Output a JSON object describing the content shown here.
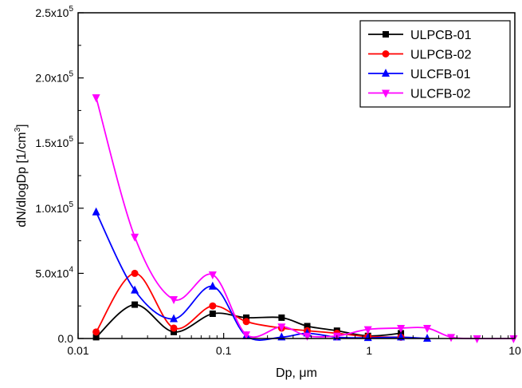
{
  "chart_data": {
    "type": "line",
    "title": "",
    "xlabel": "Dp, μm",
    "ylabel": {
      "main": "dN/dlogDp [1/cm",
      "sup": "3",
      "end": "]"
    },
    "x_scale": "log",
    "xlim": [
      0.01,
      10
    ],
    "ylim": [
      0,
      250000
    ],
    "x_ticks": [
      {
        "value": 0.01,
        "label": "0.01"
      },
      {
        "value": 0.1,
        "label": "0.1"
      },
      {
        "value": 1,
        "label": "1"
      },
      {
        "value": 10,
        "label": "10"
      }
    ],
    "y_ticks": [
      {
        "value": 0,
        "mant": "0.0",
        "exp": ""
      },
      {
        "value": 50000,
        "mant": "5.0x10",
        "exp": "4"
      },
      {
        "value": 100000,
        "mant": "1.0x10",
        "exp": "5"
      },
      {
        "value": 150000,
        "mant": "1.5x10",
        "exp": "5"
      },
      {
        "value": 200000,
        "mant": "2.0x10",
        "exp": "5"
      },
      {
        "value": 250000,
        "mant": "2.5x10",
        "exp": "5"
      }
    ],
    "grid": false,
    "legend_position": "top-right",
    "series": [
      {
        "name": "ULPCB-01",
        "color": "#000000",
        "marker": "square",
        "x": [
          0.0133,
          0.0245,
          0.0454,
          0.084,
          0.143,
          0.25,
          0.375,
          0.6,
          0.98,
          1.65
        ],
        "y": [
          1000,
          26000,
          5000,
          19000,
          16000,
          16000,
          9500,
          6000,
          2000,
          4000
        ]
      },
      {
        "name": "ULPCB-02",
        "color": "#ff0000",
        "marker": "circle",
        "x": [
          0.0133,
          0.0245,
          0.0454,
          0.084,
          0.143,
          0.25,
          0.375,
          0.6,
          0.98,
          1.65
        ],
        "y": [
          5000,
          50000,
          8000,
          25000,
          13000,
          8000,
          6000,
          4000,
          1500,
          1000
        ]
      },
      {
        "name": "ULCFB-01",
        "color": "#0000ff",
        "marker": "triangle-up",
        "x": [
          0.0133,
          0.0245,
          0.0454,
          0.084,
          0.143,
          0.25,
          0.375,
          0.6,
          0.98,
          1.65,
          2.5
        ],
        "y": [
          97000,
          37000,
          15000,
          40000,
          2000,
          1000,
          4000,
          1000,
          500,
          1000,
          0
        ]
      },
      {
        "name": "ULCFB-02",
        "color": "#ff00ff",
        "marker": "triangle-down",
        "x": [
          0.0133,
          0.0245,
          0.0454,
          0.084,
          0.143,
          0.25,
          0.375,
          0.6,
          0.98,
          1.65,
          2.5,
          3.65,
          5.5,
          9.8
        ],
        "y": [
          185000,
          78000,
          30000,
          49000,
          3000,
          9000,
          2000,
          2000,
          7000,
          8000,
          8000,
          1000,
          0,
          0
        ]
      }
    ]
  }
}
